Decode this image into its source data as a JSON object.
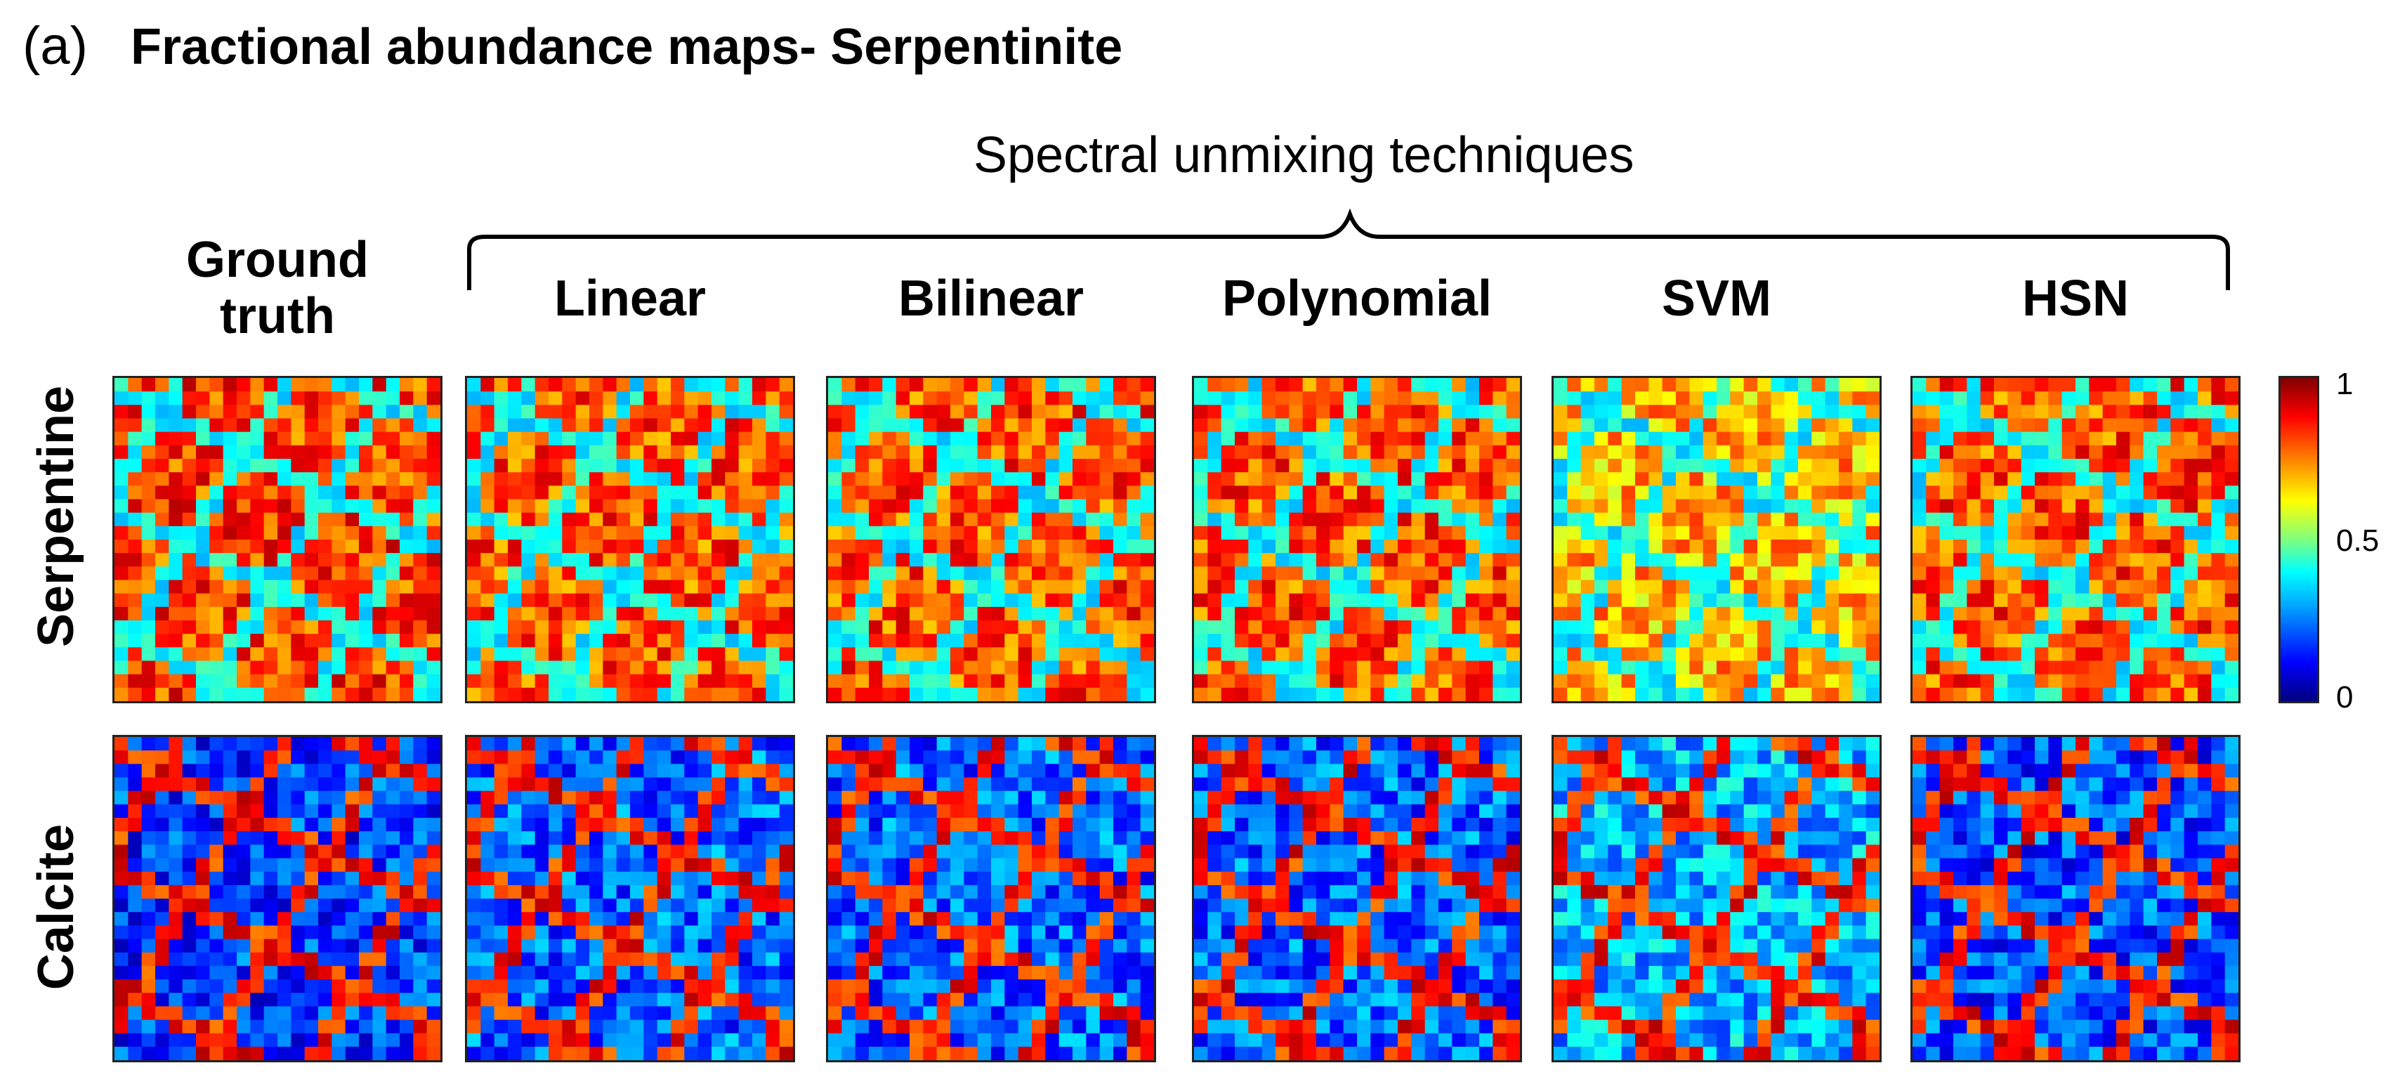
{
  "panel_tag": "(a)",
  "title": "Fractional abundance maps- Serpentinite",
  "group_label": "Spectral unmixing techniques",
  "columns": [
    "Linear",
    "Bilinear",
    "Polynomial",
    "SVM",
    "HSN"
  ],
  "ground_truth_line1": "Ground",
  "ground_truth_line2": "truth",
  "rows": [
    "Serpentine",
    "Calcite"
  ],
  "colorbar": {
    "ticks": [
      "1",
      "0.5",
      "0"
    ],
    "colormap": "jet"
  },
  "colors": {
    "text": "#000000",
    "frame": "#222222"
  }
}
